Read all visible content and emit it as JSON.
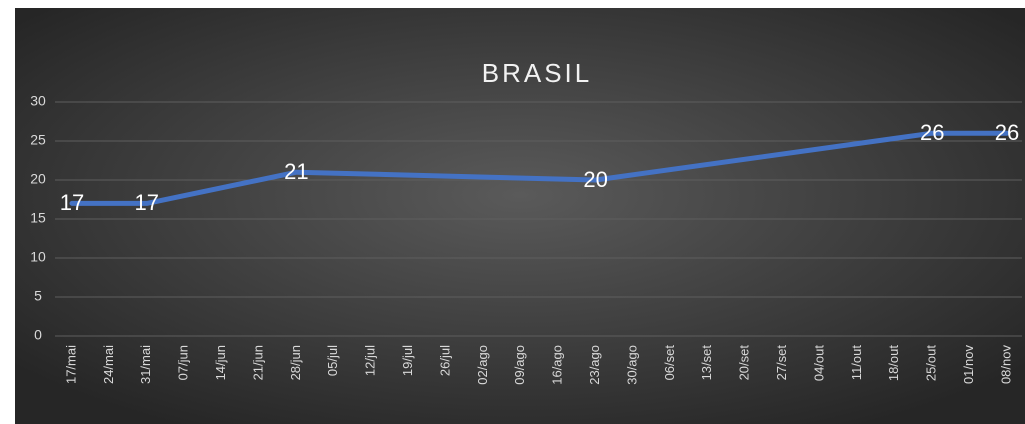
{
  "chart_data": {
    "type": "line",
    "title": "BRASIL",
    "xticks": [
      "17/mai",
      "24/mai",
      "31/mai",
      "07/jun",
      "14/jun",
      "21/jun",
      "28/jun",
      "05/jul",
      "12/jul",
      "19/jul",
      "26/jul",
      "02/ago",
      "09/ago",
      "16/ago",
      "23/ago",
      "30/ago",
      "06/set",
      "13/set",
      "20/set",
      "27/set",
      "04/out",
      "11/out",
      "18/out",
      "25/out",
      "01/nov",
      "08/nov"
    ],
    "x": [
      "17/mai",
      "31/mai",
      "28/jun",
      "23/ago",
      "25/out",
      "08/nov"
    ],
    "series": [
      {
        "color": "#4472c4",
        "values": [
          17,
          17,
          21,
          20,
          26,
          26
        ]
      }
    ],
    "ylim": [
      0,
      30
    ],
    "yticks": [
      0,
      5,
      10,
      15,
      20,
      25,
      30
    ],
    "grid": true
  }
}
